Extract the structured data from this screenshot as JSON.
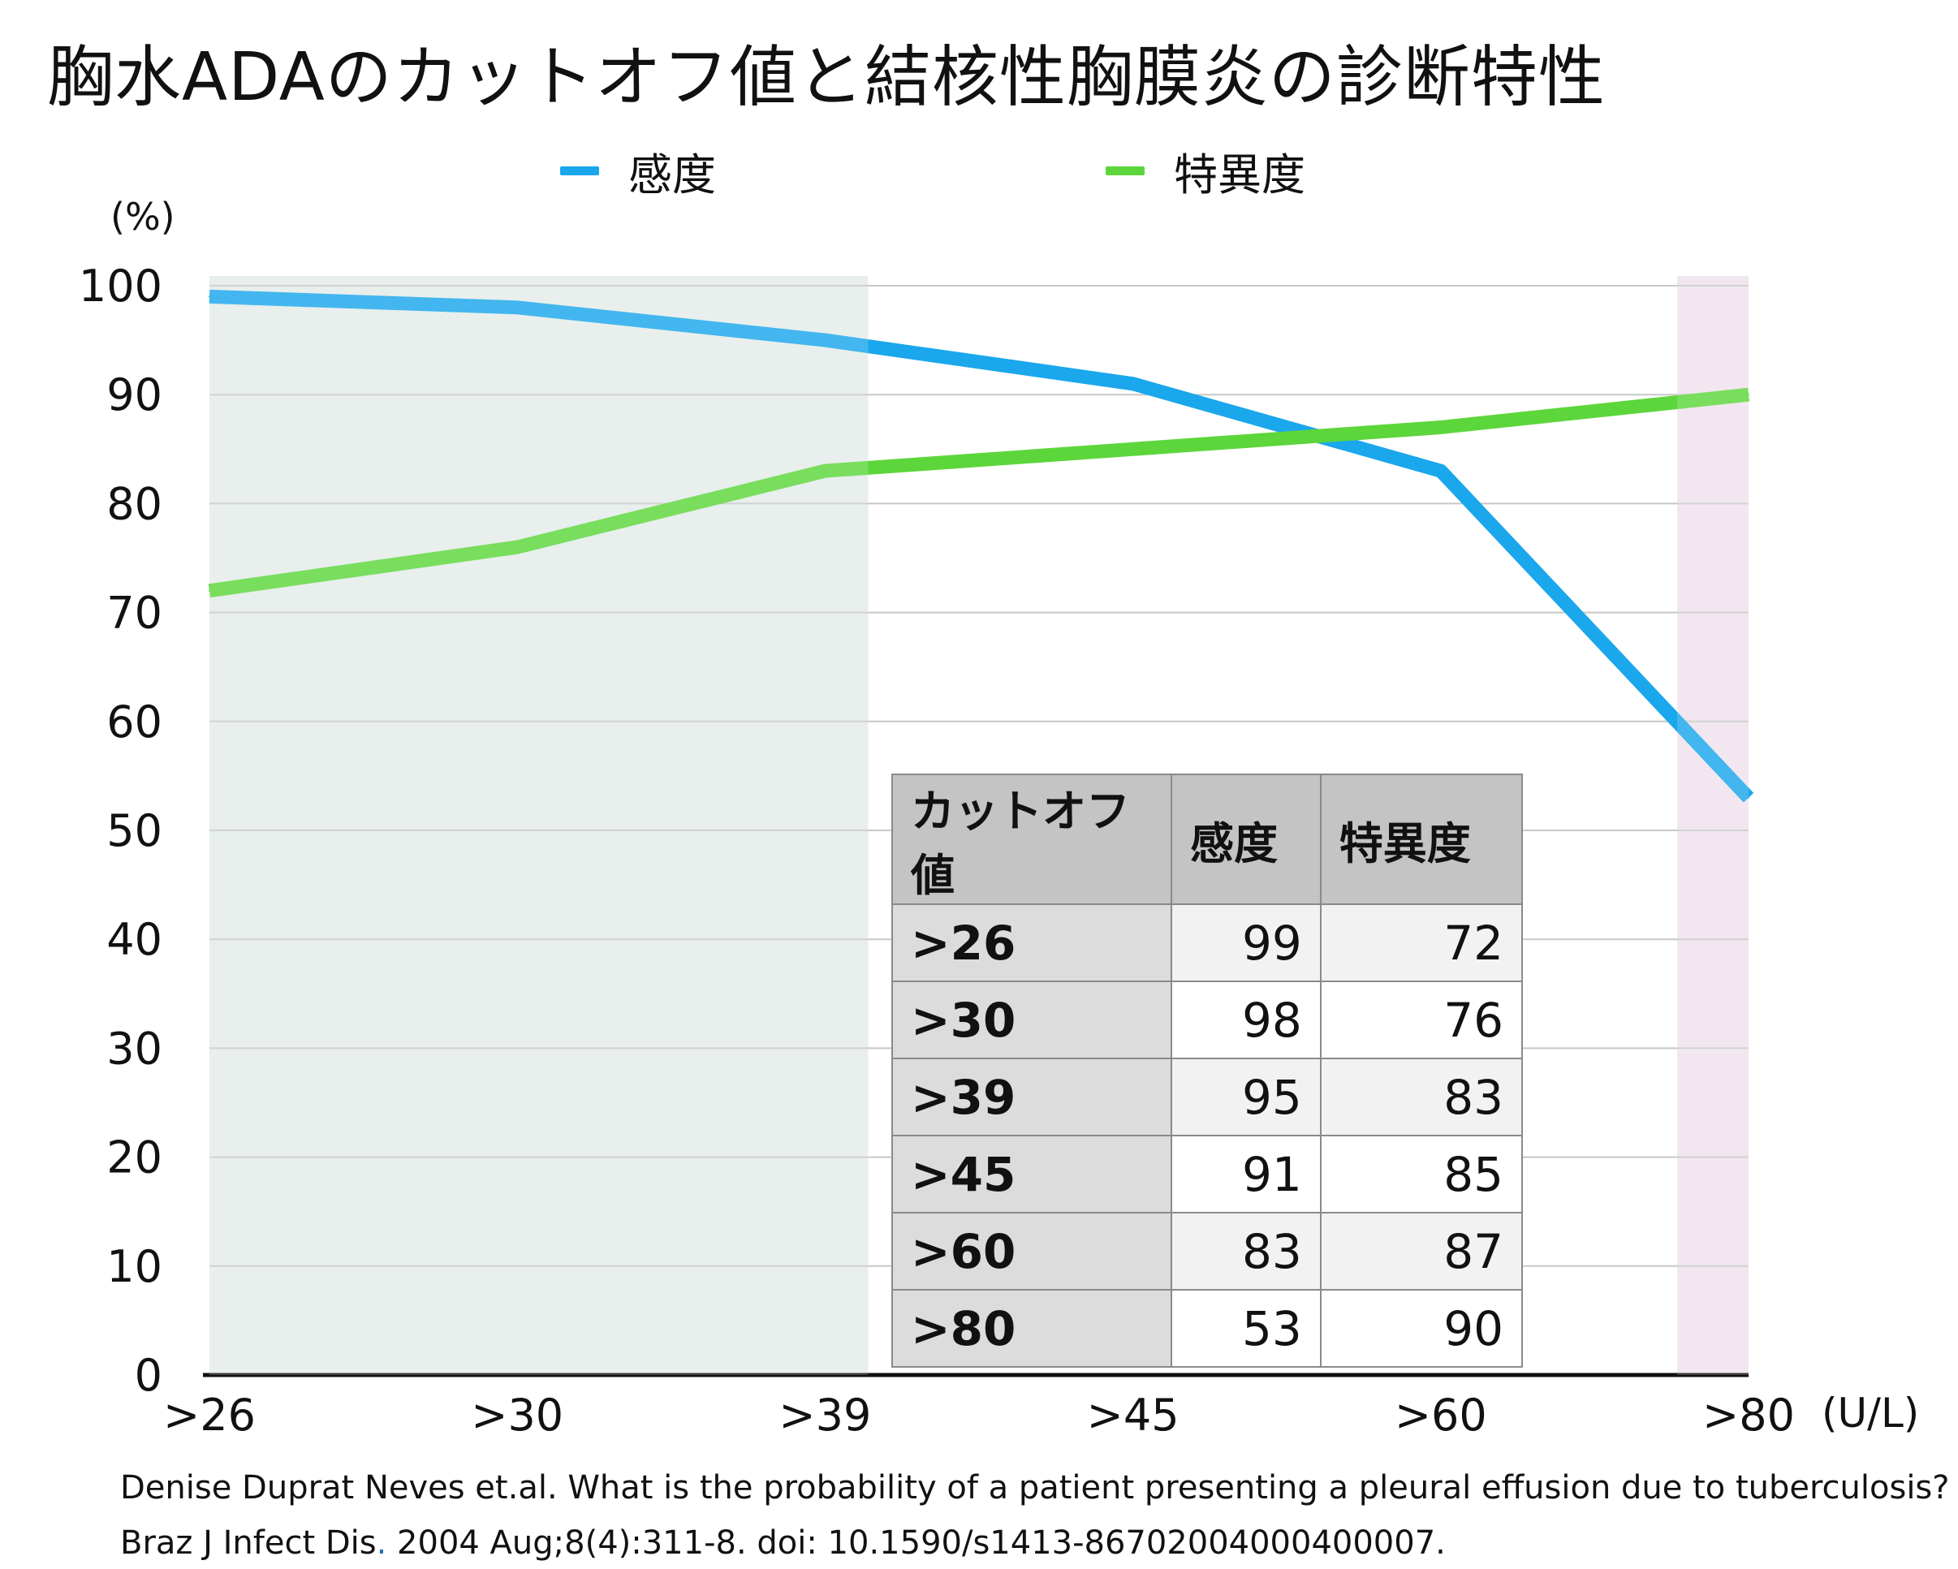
{
  "title": "胸水ADAのカットオフ値と結核性胸膜炎の診断特性",
  "chart_data": {
    "type": "line",
    "categories": [
      ">26",
      ">30",
      ">39",
      ">45",
      ">60",
      ">80"
    ],
    "series": [
      {
        "name": "感度",
        "color": "#1aa7ec",
        "values": [
          99,
          98,
          95,
          91,
          83,
          53
        ]
      },
      {
        "name": "特異度",
        "color": "#5cd63a",
        "values": [
          72,
          76,
          83,
          85,
          87,
          90
        ]
      }
    ],
    "ylabel": "(%)",
    "xlabel": "(U/L)",
    "ylim": [
      0,
      100
    ],
    "yticks": [
      "0",
      "10",
      "20",
      "30",
      "40",
      "50",
      "60",
      "70",
      "80",
      "90",
      "100"
    ],
    "grid": true,
    "legend_position": "top",
    "shaded_regions": [
      {
        "from": ">26",
        "to": ">39",
        "color": "#e3ece8"
      },
      {
        "from": ">80",
        "to": ">80",
        "color": "#f0e2ee"
      }
    ]
  },
  "table": {
    "headers": [
      "カットオフ値",
      "感度",
      "特異度"
    ],
    "rows": [
      {
        "cutoff": ">26",
        "sens": "99",
        "spec": "72"
      },
      {
        "cutoff": ">30",
        "sens": "98",
        "spec": "76"
      },
      {
        "cutoff": ">39",
        "sens": "95",
        "spec": "83"
      },
      {
        "cutoff": ">45",
        "sens": "91",
        "spec": "85"
      },
      {
        "cutoff": ">60",
        "sens": "83",
        "spec": "87"
      },
      {
        "cutoff": ">80",
        "sens": "53",
        "spec": "90"
      }
    ]
  },
  "citation": {
    "line1": "Denise Duprat Neves et.al. What is the probability of a patient presenting a pleural effusion due to tuberculosis?",
    "line2_a": "Braz J Infect Dis",
    "line2_dot": ".",
    "line2_b": " 2004 Aug;8(4):311-8. doi: 10.1590/s1413-86702004000400007."
  }
}
